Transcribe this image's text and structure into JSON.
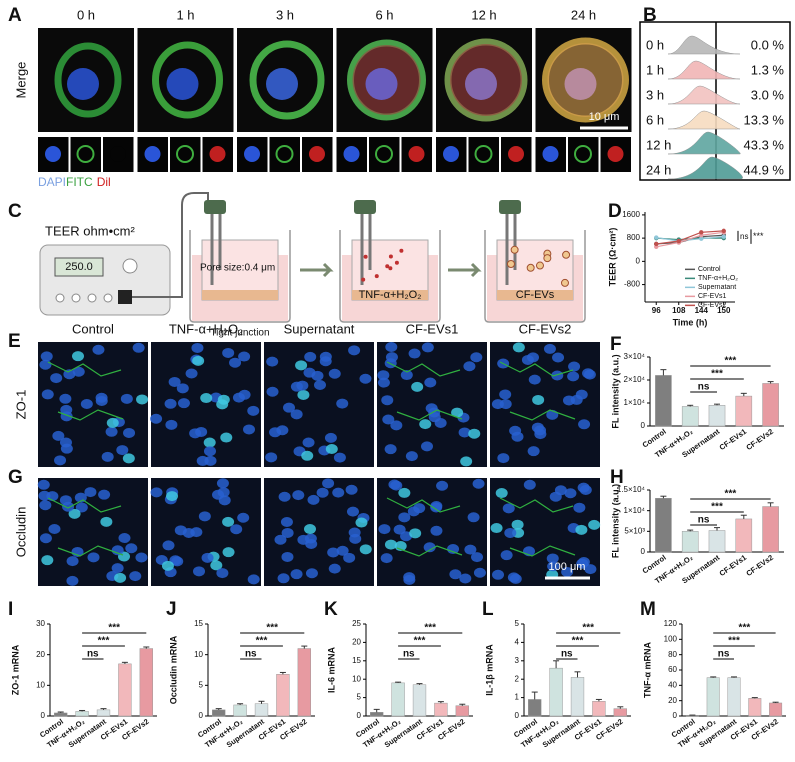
{
  "panel_labels": [
    "A",
    "B",
    "C",
    "D",
    "E",
    "F",
    "G",
    "H",
    "I",
    "J",
    "K",
    "L",
    "M"
  ],
  "panel_a": {
    "time_labels": [
      "0 h",
      "1 h",
      "3 h",
      "6 h",
      "12 h",
      "24 h"
    ],
    "row_label": "Merge",
    "scale_bar": "10 μm",
    "channels": [
      "DAPI",
      "FITC",
      "Dil"
    ]
  },
  "panel_b": {
    "rows": [
      [
        "0 h",
        "0.0 %"
      ],
      [
        "1 h",
        "1.3 %"
      ],
      [
        "3 h",
        "3.0 %"
      ],
      [
        "6 h",
        "13.3 %"
      ],
      [
        "12 h",
        "43.3 %"
      ],
      [
        "24 h",
        "44.9 %"
      ]
    ]
  },
  "panel_c": {
    "meter_title": "TEER ohm•cm²",
    "meter_reading": "250.0",
    "pore_size": "Pore size:0.4 μm",
    "junction": "Tight junction",
    "treatments": [
      "TNF-α+H₂O₂",
      "CF-EVs"
    ]
  },
  "panel_e": {
    "groups": [
      "Control",
      "TNF-α+H₂O₂",
      "Supernatant",
      "CF-EVs1",
      "CF-EVs2"
    ],
    "rows": [
      "ZO-1",
      "Occludin"
    ],
    "scale_bar": "100 μm"
  },
  "chart_data": [
    {
      "type": "line",
      "ylabel": "TEER (Ω·cm²)",
      "xlabel": "Time (h)",
      "categories": [
        "96",
        "108",
        "144",
        "150"
      ],
      "ylim": [
        -1400,
        1700
      ],
      "yticks": [
        -800,
        0,
        800,
        1600
      ],
      "annotations": [
        "ns",
        "***"
      ],
      "legend": "right",
      "series": [
        {
          "name": "Control",
          "color": "#555555",
          "values": [
            600,
            650,
            850,
            900
          ]
        },
        {
          "name": "TNF-α+H₂O₂",
          "color": "#3a8a7a",
          "values": [
            800,
            750,
            800,
            800
          ]
        },
        {
          "name": "Supernatant",
          "color": "#8fc6d8",
          "values": [
            820,
            700,
            780,
            850
          ]
        },
        {
          "name": "CF-EVs1",
          "color": "#e89aa0",
          "values": [
            500,
            650,
            900,
            1000
          ]
        },
        {
          "name": "CF-EVs2",
          "color": "#c0504d",
          "values": [
            600,
            700,
            1000,
            1050
          ]
        }
      ]
    },
    {
      "type": "bar",
      "ylabel": "FL intensity (a.u.)",
      "categories": [
        "Control",
        "TNF-α+H₂O₂",
        "Supernatant",
        "CF-EVs1",
        "CF-EVs2"
      ],
      "values": [
        22000,
        8500,
        9000,
        13000,
        18500
      ],
      "errors": [
        2500,
        500,
        500,
        1200,
        800
      ],
      "colors": [
        "#7f7f7f",
        "#cfe3df",
        "#d9e4e6",
        "#f2b8bb",
        "#e79aa1"
      ],
      "ylim": [
        0,
        30000
      ],
      "yticks": [
        0,
        {
          "value": 10000,
          "label": "1×10⁴"
        },
        {
          "value": 20000,
          "label": "2×10⁴"
        },
        {
          "value": 30000,
          "label": "3×10⁴"
        }
      ],
      "annotations": [
        "***",
        "***",
        "ns"
      ]
    },
    {
      "type": "bar",
      "ylabel": "FL intensity (a.u.)",
      "categories": [
        "Control",
        "TNF-α+H₂O₂",
        "Supernatant",
        "CF-EVs1",
        "CF-EVs2"
      ],
      "values": [
        13000,
        5000,
        5200,
        8000,
        11000
      ],
      "errors": [
        500,
        300,
        700,
        900,
        900
      ],
      "colors": [
        "#7f7f7f",
        "#cfe3df",
        "#d9e4e6",
        "#f2b8bb",
        "#e79aa1"
      ],
      "ylim": [
        0,
        15000
      ],
      "yticks": [
        0,
        {
          "value": 5000,
          "label": "5×10³"
        },
        {
          "value": 10000,
          "label": "1×10⁴"
        },
        {
          "value": 15000,
          "label": "1.5×10⁴"
        }
      ],
      "annotations": [
        "***",
        "***",
        "ns"
      ]
    },
    {
      "type": "bar",
      "ylabel": "ZO-1 mRNA",
      "categories": [
        "Control",
        "TNF-α+H₂O₂",
        "Supernatant",
        "CF-EVs1",
        "CF-EVs2"
      ],
      "values": [
        1,
        1.5,
        2,
        17,
        22
      ],
      "errors": [
        0.3,
        0.3,
        0.4,
        0.5,
        0.5
      ],
      "colors": [
        "#7f7f7f",
        "#cfe3df",
        "#d9e4e6",
        "#f2b8bb",
        "#e79aa1"
      ],
      "ylim": [
        0,
        30
      ],
      "yticks": [
        0,
        10,
        20,
        30
      ],
      "annotations": [
        "***",
        "***",
        "ns"
      ]
    },
    {
      "type": "bar",
      "ylabel": "Occludin mRNA",
      "categories": [
        "Control",
        "TNF-α+H₂O₂",
        "Supernatant",
        "CF-EVs1",
        "CF-EVs2"
      ],
      "values": [
        1,
        1.8,
        2,
        6.8,
        11
      ],
      "errors": [
        0.2,
        0.2,
        0.4,
        0.3,
        0.4
      ],
      "colors": [
        "#7f7f7f",
        "#cfe3df",
        "#d9e4e6",
        "#f2b8bb",
        "#e79aa1"
      ],
      "ylim": [
        0,
        15
      ],
      "yticks": [
        0,
        5,
        10,
        15
      ],
      "annotations": [
        "***",
        "***",
        "ns"
      ]
    },
    {
      "type": "bar",
      "ylabel": "IL-6 mRNA",
      "categories": [
        "Control",
        "TNF-α+H₂O₂",
        "Supernatant",
        "CF-EVs1",
        "CF-EVs2"
      ],
      "values": [
        1,
        9,
        8.5,
        3.5,
        2.8
      ],
      "errors": [
        0.8,
        0.2,
        0.3,
        0.4,
        0.4
      ],
      "colors": [
        "#7f7f7f",
        "#cfe3df",
        "#d9e4e6",
        "#f2b8bb",
        "#e79aa1"
      ],
      "ylim": [
        0,
        25
      ],
      "yticks": [
        0,
        5,
        10,
        15,
        20,
        25
      ],
      "annotations": [
        "***",
        "***",
        "ns"
      ]
    },
    {
      "type": "bar",
      "ylabel": "IL-1β mRNA",
      "categories": [
        "Control",
        "TNF-α+H₂O₂",
        "Supernatant",
        "CF-EVs1",
        "CF-EVs2"
      ],
      "values": [
        0.9,
        2.6,
        2.1,
        0.8,
        0.4
      ],
      "errors": [
        0.4,
        0.4,
        0.3,
        0.1,
        0.1
      ],
      "colors": [
        "#7f7f7f",
        "#cfe3df",
        "#d9e4e6",
        "#f2b8bb",
        "#e79aa1"
      ],
      "ylim": [
        0,
        5
      ],
      "yticks": [
        0,
        1,
        2,
        3,
        4,
        5
      ],
      "annotations": [
        "***",
        "***",
        "ns"
      ]
    },
    {
      "type": "bar",
      "ylabel": "TNF-α mRNA",
      "categories": [
        "Control",
        "TNF-α+H₂O₂",
        "Supernatant",
        "CF-EVs1",
        "CF-EVs2"
      ],
      "values": [
        1,
        50,
        50,
        23,
        17
      ],
      "errors": [
        0.2,
        1,
        1,
        1,
        1
      ],
      "colors": [
        "#7f7f7f",
        "#cfe3df",
        "#d9e4e6",
        "#f2b8bb",
        "#e79aa1"
      ],
      "ylim": [
        0,
        120
      ],
      "yticks": [
        0,
        20,
        40,
        60,
        80,
        100,
        120
      ],
      "annotations": [
        "***",
        "***",
        "ns"
      ]
    }
  ]
}
